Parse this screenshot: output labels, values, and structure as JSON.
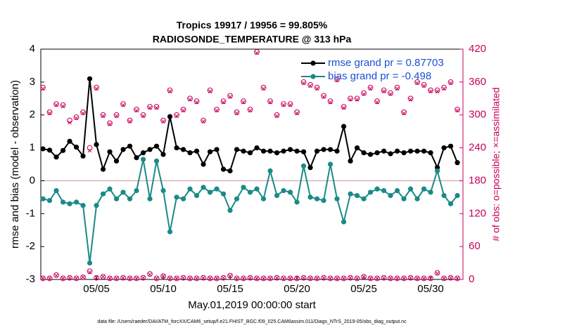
{
  "chart_data": {
    "type": "line",
    "title": "Tropics 19917 / 19956 = 99.805%",
    "subtitle": "RADIOSONDE_TEMPERATURE @ 313 hPa",
    "xlabel": "May.01,2019 00:00:00 start",
    "ylabel": "rmse and bias (model - observation)",
    "y2label": "# of obs: o=possible; ×=assimilated",
    "footnote": "data file: /Users/raeder/DAI/ATM_forcXX/CAM6_setup/f.e21.FHIST_BGC.f09_025.CAM6assim.011/Diags_NTrS_2019-05/obs_diag_output.nc",
    "x": [
      1,
      1.5,
      2,
      2.5,
      3,
      3.5,
      4,
      4.5,
      5,
      5.5,
      6,
      6.5,
      7,
      7.5,
      8,
      8.5,
      9,
      9.5,
      10,
      10.5,
      11,
      11.5,
      12,
      12.5,
      13,
      13.5,
      14,
      14.5,
      15,
      15.5,
      16,
      16.5,
      17,
      17.5,
      18,
      18.5,
      19,
      19.5,
      20,
      20.5,
      21,
      21.5,
      22,
      22.5,
      23,
      23.5,
      24,
      24.5,
      25,
      25.5,
      26,
      26.5,
      27,
      27.5,
      28,
      28.5,
      29,
      29.5,
      30,
      30.5,
      31,
      31.5,
      32
    ],
    "xlim": [
      0.84,
      32.42
    ],
    "xticks": [
      {
        "value": 5,
        "label": "05/05"
      },
      {
        "value": 10,
        "label": "05/10"
      },
      {
        "value": 15,
        "label": "05/15"
      },
      {
        "value": 20,
        "label": "05/20"
      },
      {
        "value": 25,
        "label": "05/25"
      },
      {
        "value": 30,
        "label": "05/30"
      }
    ],
    "ylim": [
      -3,
      4
    ],
    "yticks": [
      -3,
      -2,
      -1,
      0,
      1,
      2,
      3,
      4
    ],
    "y2lim": [
      0,
      420
    ],
    "y2ticks": [
      0,
      60,
      120,
      180,
      240,
      300,
      360,
      420
    ],
    "y2_color": "#c8005a",
    "legend_position": "upper right",
    "legend_text_color": "#1a4fd6",
    "series": [
      {
        "name": "rmse grand pr = 0.87703",
        "color": "#000000",
        "marker": "circle",
        "values": [
          0.97,
          0.93,
          0.72,
          0.92,
          1.2,
          1.02,
          0.75,
          3.1,
          1.1,
          0.35,
          0.88,
          0.6,
          0.95,
          1.05,
          0.7,
          0.85,
          0.95,
          1.05,
          0.8,
          1.95,
          1.0,
          0.95,
          0.85,
          0.9,
          0.5,
          0.88,
          0.95,
          0.35,
          0.3,
          0.95,
          0.9,
          0.85,
          1.0,
          0.9,
          0.9,
          0.85,
          0.9,
          0.95,
          0.9,
          0.88,
          0.4,
          0.9,
          0.95,
          0.95,
          0.9,
          1.65,
          0.6,
          1.0,
          0.85,
          0.8,
          0.85,
          0.9,
          0.82,
          0.9,
          0.85,
          0.9,
          0.9,
          0.9,
          0.85,
          0.4,
          1.0,
          1.05,
          0.55
        ]
      },
      {
        "name": "bias grand pr = -0.498",
        "color": "#1a8a86",
        "marker": "circle",
        "values": [
          -0.55,
          -0.6,
          -0.3,
          -0.65,
          -0.7,
          -0.65,
          -0.75,
          -2.5,
          -0.75,
          -0.4,
          -0.25,
          -0.55,
          -0.35,
          -0.55,
          -0.3,
          0.65,
          -0.55,
          0.6,
          -0.3,
          -1.55,
          -0.5,
          -0.55,
          -0.25,
          -0.45,
          -0.2,
          -0.35,
          -0.25,
          -0.4,
          -0.9,
          -0.55,
          -0.2,
          -0.35,
          -0.25,
          -0.55,
          0.3,
          -0.45,
          -0.3,
          -0.35,
          -0.65,
          0.45,
          -0.5,
          -0.55,
          -0.6,
          0.5,
          -0.55,
          -1.25,
          -0.4,
          -0.45,
          -0.55,
          -0.35,
          -0.25,
          -0.3,
          -0.45,
          -0.3,
          -0.55,
          -0.25,
          -0.55,
          -0.25,
          -0.35,
          0.3,
          -0.45,
          -0.7,
          -0.45
        ]
      },
      {
        "color": "#c8005a",
        "marker": "o",
        "axis": "y2",
        "values": [
          350,
          305,
          320,
          318,
          290,
          296,
          305,
          240,
          350,
          300,
          285,
          300,
          320,
          290,
          310,
          300,
          315,
          315,
          290,
          345,
          300,
          310,
          330,
          325,
          290,
          345,
          310,
          325,
          335,
          305,
          325,
          310,
          415,
          350,
          325,
          300,
          320,
          320,
          305,
          360,
          355,
          350,
          335,
          325,
          365,
          315,
          330,
          330,
          340,
          350,
          325,
          345,
          340,
          350,
          305,
          330,
          360,
          355,
          345,
          345,
          350,
          360,
          310
        ]
      },
      {
        "color": "#c8005a",
        "marker": "x",
        "axis": "y2",
        "values": [
          348,
          303,
          318,
          316,
          286,
          294,
          303,
          235,
          348,
          298,
          283,
          298,
          318,
          288,
          308,
          298,
          313,
          313,
          288,
          343,
          298,
          308,
          328,
          323,
          288,
          343,
          308,
          323,
          333,
          303,
          323,
          308,
          413,
          348,
          323,
          298,
          318,
          318,
          303,
          358,
          353,
          348,
          333,
          323,
          363,
          313,
          328,
          328,
          338,
          348,
          323,
          343,
          338,
          348,
          303,
          328,
          358,
          353,
          343,
          343,
          348,
          358,
          308
        ]
      },
      {
        "color": "#c8005a",
        "marker": "o",
        "axis": "y2",
        "values": [
          2,
          2,
          8,
          2,
          3,
          2,
          4,
          15,
          3,
          5,
          2,
          2,
          3,
          2,
          2,
          3,
          10,
          2,
          6,
          2,
          2,
          3,
          2,
          2,
          3,
          2,
          2,
          3,
          7,
          2,
          2,
          3,
          2,
          2,
          2,
          3,
          2,
          2,
          2,
          3,
          2,
          2,
          3,
          2,
          2,
          2,
          3,
          2,
          5,
          2,
          2,
          3,
          2,
          2,
          2,
          3,
          2,
          2,
          2,
          12,
          2,
          3,
          2
        ]
      },
      {
        "color": "#c8005a",
        "marker": "x",
        "axis": "y2",
        "values": [
          2,
          2,
          7,
          2,
          3,
          2,
          4,
          13,
          3,
          5,
          2,
          2,
          3,
          2,
          2,
          3,
          9,
          2,
          6,
          2,
          2,
          3,
          2,
          2,
          3,
          2,
          2,
          3,
          6,
          2,
          2,
          3,
          2,
          2,
          2,
          3,
          2,
          2,
          2,
          3,
          2,
          2,
          3,
          2,
          2,
          2,
          3,
          2,
          5,
          2,
          2,
          3,
          2,
          2,
          2,
          3,
          2,
          2,
          2,
          11,
          2,
          3,
          2
        ]
      }
    ]
  }
}
